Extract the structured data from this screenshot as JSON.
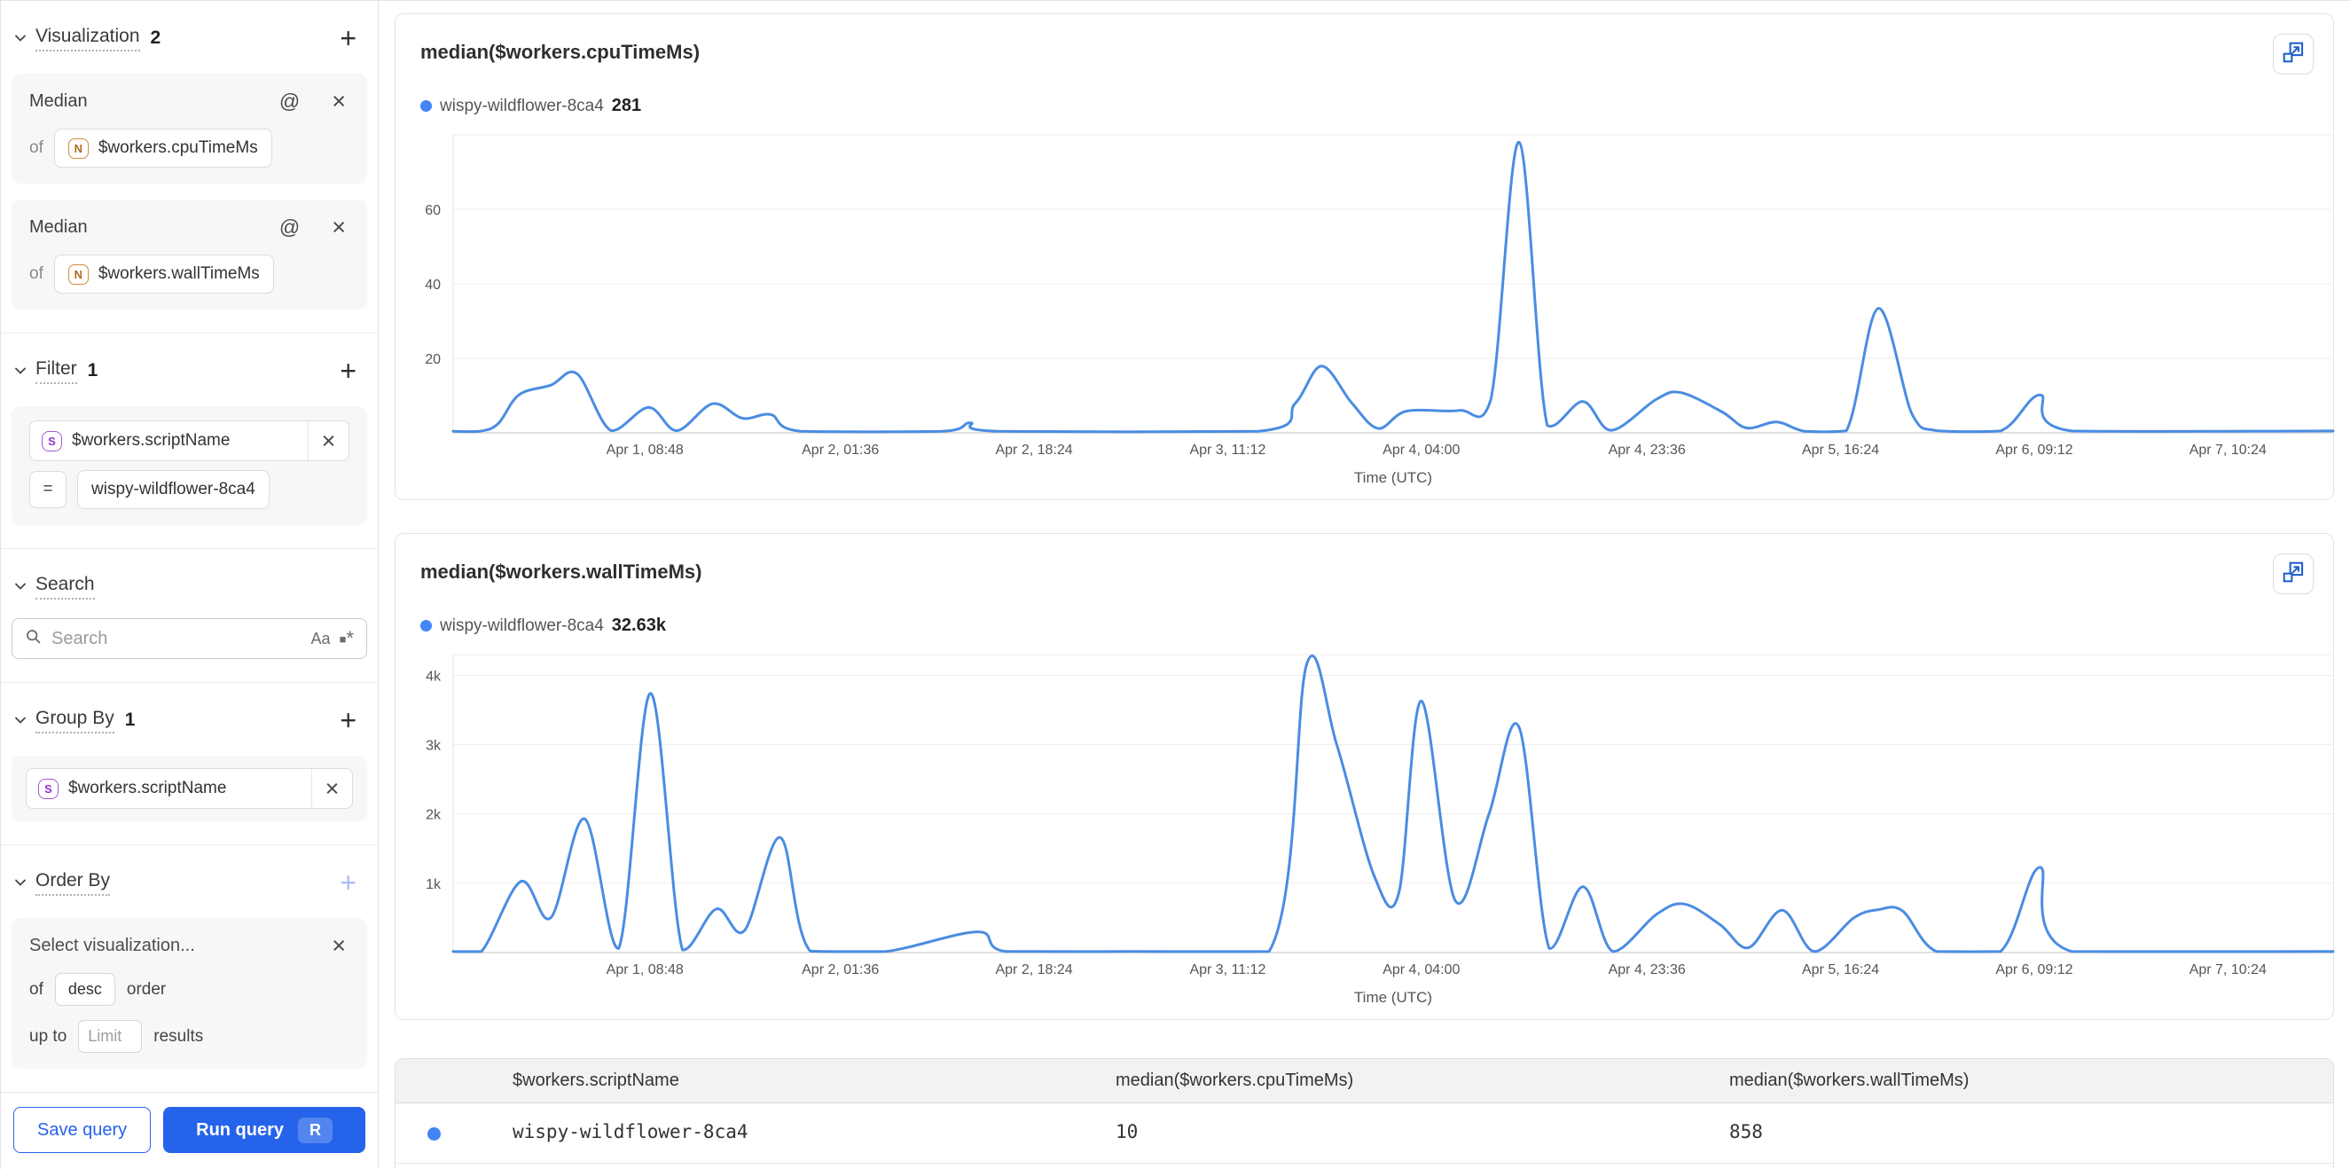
{
  "colors": {
    "accent_blue": "#2563eb",
    "line_blue": "#4a8ce2",
    "dot_blue": "#4285f4",
    "expand_icon_blue": "#1d5ecb",
    "badge_number_orange": "#cd8b3a",
    "badge_string_purple": "#a757d8"
  },
  "icons": {
    "add": "+",
    "at": "@",
    "close": "×",
    "equals": "=",
    "match_case": "Aa"
  },
  "sidebar": {
    "visualization": {
      "title": "Visualization",
      "count": "2"
    },
    "metrics": [
      {
        "agg": "Median",
        "of_label": "of",
        "badge": "N",
        "field": "$workers.cpuTimeMs"
      },
      {
        "agg": "Median",
        "of_label": "of",
        "badge": "N",
        "field": "$workers.wallTimeMs"
      }
    ],
    "filter": {
      "title": "Filter",
      "count": "1",
      "badge": "S",
      "field": "$workers.scriptName",
      "operator": "=",
      "value": "wispy-wildflower-8ca4"
    },
    "search": {
      "title": "Search",
      "placeholder": "Search"
    },
    "group_by": {
      "title": "Group By",
      "count": "1",
      "badge": "S",
      "field": "$workers.scriptName"
    },
    "order_by": {
      "title": "Order By",
      "placeholder": "Select visualization...",
      "of_label": "of",
      "direction": "desc",
      "order_label": "order",
      "up_to_label": "up to",
      "limit_placeholder": "Limit",
      "results_label": "results"
    },
    "footer": {
      "save_label": "Save query",
      "run_label": "Run query",
      "run_shortcut": "R"
    }
  },
  "chart_data": [
    {
      "type": "line",
      "title": "median($workers.cpuTimeMs)",
      "legend": {
        "series": "wispy-wildflower-8ca4",
        "value": "281"
      },
      "xlabel": "Time (UTC)",
      "ylim": [
        0,
        80
      ],
      "yticks": [
        {
          "value": 20,
          "label": "20"
        },
        {
          "value": 40,
          "label": "40"
        },
        {
          "value": 60,
          "label": "60"
        }
      ],
      "xticks": [
        {
          "pos": 0.102,
          "label": "Apr 1, 08:48"
        },
        {
          "pos": 0.206,
          "label": "Apr 2, 01:36"
        },
        {
          "pos": 0.309,
          "label": "Apr 2, 18:24"
        },
        {
          "pos": 0.412,
          "label": "Apr 3, 11:12"
        },
        {
          "pos": 0.515,
          "label": "Apr 4, 04:00"
        },
        {
          "pos": 0.635,
          "label": "Apr 4, 23:36"
        },
        {
          "pos": 0.738,
          "label": "Apr 5, 16:24"
        },
        {
          "pos": 0.841,
          "label": "Apr 6, 09:12"
        },
        {
          "pos": 0.944,
          "label": "Apr 7, 10:24"
        }
      ],
      "series": [
        {
          "name": "wispy-wildflower-8ca4",
          "color": "#4a8ce2",
          "points": [
            [
              0.0,
              0.4
            ],
            [
              0.014,
              0.4
            ],
            [
              0.024,
              2.5
            ],
            [
              0.035,
              10.2
            ],
            [
              0.052,
              12.8
            ],
            [
              0.066,
              15.8
            ],
            [
              0.084,
              0.6
            ],
            [
              0.104,
              6.8
            ],
            [
              0.119,
              0.6
            ],
            [
              0.138,
              7.8
            ],
            [
              0.154,
              3.9
            ],
            [
              0.169,
              4.9
            ],
            [
              0.185,
              0.4
            ],
            [
              0.26,
              0.4
            ],
            [
              0.275,
              2.7
            ],
            [
              0.29,
              0.4
            ],
            [
              0.428,
              0.4
            ],
            [
              0.448,
              8.0
            ],
            [
              0.462,
              17.9
            ],
            [
              0.478,
              8.0
            ],
            [
              0.492,
              1.2
            ],
            [
              0.507,
              5.8
            ],
            [
              0.535,
              6.0
            ],
            [
              0.552,
              9.0
            ],
            [
              0.567,
              78.0
            ],
            [
              0.582,
              2.0
            ],
            [
              0.601,
              8.4
            ],
            [
              0.616,
              0.7
            ],
            [
              0.64,
              9.0
            ],
            [
              0.653,
              10.8
            ],
            [
              0.675,
              5.6
            ],
            [
              0.688,
              1.3
            ],
            [
              0.704,
              2.9
            ],
            [
              0.719,
              0.4
            ],
            [
              0.741,
              0.5
            ],
            [
              0.758,
              33.4
            ],
            [
              0.776,
              5.0
            ],
            [
              0.789,
              0.6
            ],
            [
              0.823,
              0.5
            ],
            [
              0.844,
              10.2
            ],
            [
              0.861,
              0.5
            ],
            [
              1.0,
              0.5
            ]
          ]
        }
      ]
    },
    {
      "type": "line",
      "title": "median($workers.wallTimeMs)",
      "legend": {
        "series": "wispy-wildflower-8ca4",
        "value": "32.63k"
      },
      "xlabel": "Time (UTC)",
      "ylim": [
        0,
        4300
      ],
      "yticks": [
        {
          "value": 1000,
          "label": "1k"
        },
        {
          "value": 2000,
          "label": "2k"
        },
        {
          "value": 3000,
          "label": "3k"
        },
        {
          "value": 4000,
          "label": "4k"
        }
      ],
      "xticks": [
        {
          "pos": 0.102,
          "label": "Apr 1, 08:48"
        },
        {
          "pos": 0.206,
          "label": "Apr 2, 01:36"
        },
        {
          "pos": 0.309,
          "label": "Apr 2, 18:24"
        },
        {
          "pos": 0.412,
          "label": "Apr 3, 11:12"
        },
        {
          "pos": 0.515,
          "label": "Apr 4, 04:00"
        },
        {
          "pos": 0.635,
          "label": "Apr 4, 23:36"
        },
        {
          "pos": 0.738,
          "label": "Apr 5, 16:24"
        },
        {
          "pos": 0.841,
          "label": "Apr 6, 09:12"
        },
        {
          "pos": 0.944,
          "label": "Apr 7, 10:24"
        }
      ],
      "series": [
        {
          "name": "wispy-wildflower-8ca4",
          "color": "#4a8ce2",
          "points": [
            [
              0.0,
              15
            ],
            [
              0.015,
              15
            ],
            [
              0.036,
              1025
            ],
            [
              0.052,
              504
            ],
            [
              0.07,
              1930
            ],
            [
              0.088,
              60
            ],
            [
              0.105,
              3740
            ],
            [
              0.122,
              40
            ],
            [
              0.14,
              630
            ],
            [
              0.155,
              320
            ],
            [
              0.174,
              1660
            ],
            [
              0.19,
              20
            ],
            [
              0.23,
              15
            ],
            [
              0.279,
              300
            ],
            [
              0.294,
              15
            ],
            [
              0.36,
              15
            ],
            [
              0.434,
              15
            ],
            [
              0.454,
              4160
            ],
            [
              0.47,
              3000
            ],
            [
              0.49,
              1100
            ],
            [
              0.503,
              860
            ],
            [
              0.515,
              3630
            ],
            [
              0.533,
              750
            ],
            [
              0.551,
              2000
            ],
            [
              0.567,
              3250
            ],
            [
              0.583,
              60
            ],
            [
              0.601,
              950
            ],
            [
              0.617,
              15
            ],
            [
              0.64,
              550
            ],
            [
              0.655,
              700
            ],
            [
              0.674,
              400
            ],
            [
              0.689,
              70
            ],
            [
              0.707,
              610
            ],
            [
              0.724,
              15
            ],
            [
              0.745,
              500
            ],
            [
              0.758,
              620
            ],
            [
              0.771,
              600
            ],
            [
              0.789,
              15
            ],
            [
              0.823,
              15
            ],
            [
              0.844,
              1230
            ],
            [
              0.861,
              15
            ],
            [
              1.0,
              15
            ]
          ]
        }
      ]
    }
  ],
  "table": {
    "headers": [
      "$workers.scriptName",
      "median($workers.cpuTimeMs)",
      "median($workers.wallTimeMs)"
    ],
    "rows": [
      {
        "script": "wispy-wildflower-8ca4",
        "cpu": "10",
        "wall": "858"
      }
    ]
  }
}
